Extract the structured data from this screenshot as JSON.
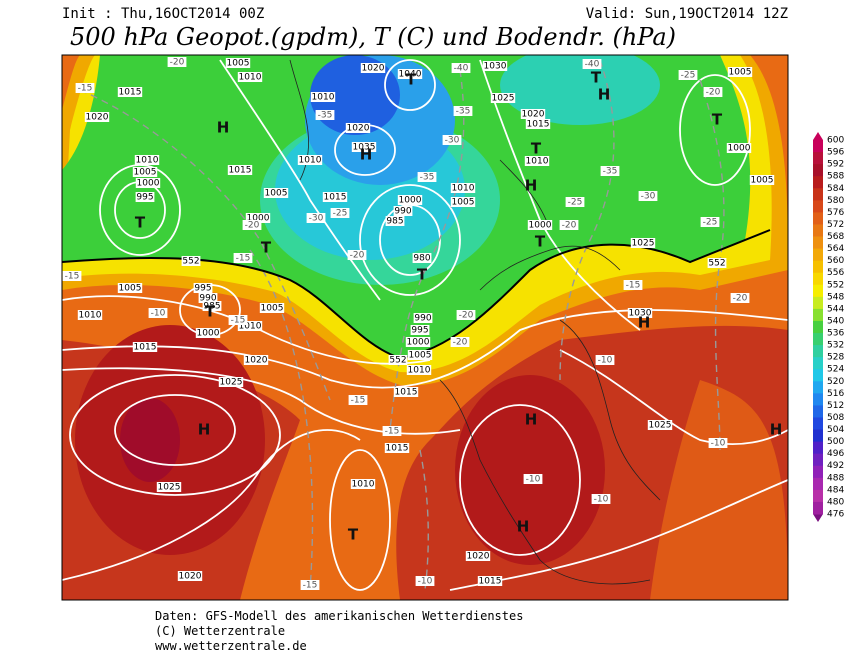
{
  "header": {
    "init": "Init : Thu,16OCT2014 00Z",
    "valid": "Valid: Sun,19OCT2014 12Z",
    "title": "500 hPa Geopot.(gpdm), T (C) und Bodendr. (hPa)"
  },
  "legend": {
    "levels": [
      600,
      596,
      592,
      588,
      584,
      580,
      576,
      572,
      568,
      564,
      560,
      556,
      552,
      548,
      544,
      540,
      536,
      532,
      528,
      524,
      520,
      516,
      512,
      508,
      504,
      500,
      496,
      492,
      488,
      484,
      480,
      476
    ]
  },
  "map": {
    "pressure_labels": [
      "1005",
      "1010",
      "1015",
      "1020",
      "1020",
      "1040",
      "1030",
      "1025",
      "1020",
      "1015",
      "1010",
      "1020",
      "1035",
      "1010",
      "1010",
      "1005",
      "1000",
      "995",
      "1015",
      "1005",
      "1015",
      "1000",
      "990",
      "985",
      "1000",
      "1010",
      "1005",
      "1010",
      "1000",
      "980",
      "1000",
      "1005",
      "1005",
      "1025",
      "1005",
      "995",
      "990",
      "985",
      "1010",
      "1005",
      "1010",
      "1000",
      "1015",
      "1020",
      "1025",
      "1015",
      "990",
      "995",
      "1000",
      "1005",
      "1010",
      "1030",
      "1025",
      "1015",
      "1010",
      "1025",
      "1020",
      "1015",
      "1020"
    ],
    "temperature_labels": [
      "-15",
      "-20",
      "-40",
      "-40",
      "-25",
      "-20",
      "-35",
      "-35",
      "-30",
      "-35",
      "-35",
      "-25",
      "-30",
      "-25",
      "-30",
      "-25",
      "-20",
      "-20",
      "-20",
      "-15",
      "-15",
      "-10",
      "-15",
      "-20",
      "-20",
      "-15",
      "-20",
      "-10",
      "-10",
      "-15",
      "-15",
      "-10",
      "-10",
      "-15",
      "-10"
    ],
    "height_labels": [
      "552",
      "552",
      "552"
    ],
    "centers": [
      "H",
      "H",
      "T",
      "T",
      "H",
      "T",
      "T",
      "T",
      "T",
      "H",
      "T",
      "T",
      "T",
      "H",
      "H",
      "H",
      "H",
      "H",
      "T"
    ]
  },
  "footer": {
    "line1": "Daten: GFS-Modell des amerikanischen Wetterdienstes",
    "line2": "(C) Wetterzentrale",
    "line3": "www.wetterzentrale.de"
  }
}
